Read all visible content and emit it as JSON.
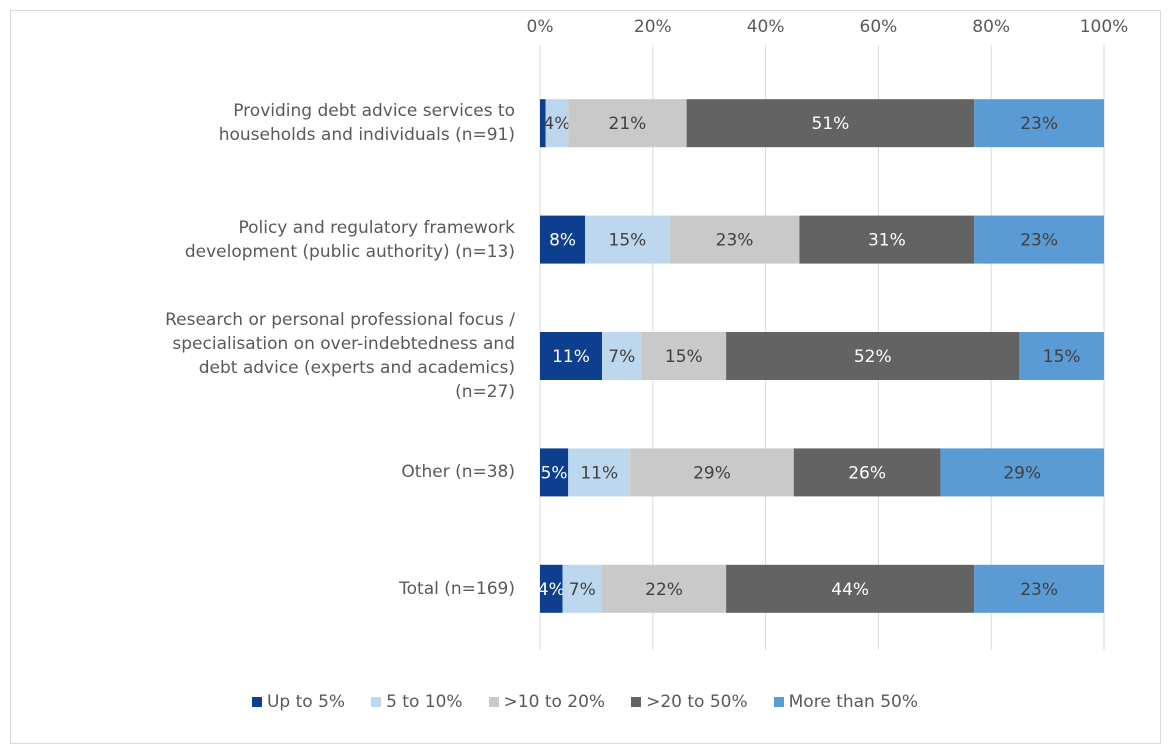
{
  "chart_data": {
    "type": "stacked-bar-horizontal",
    "categories": [
      "Providing debt advice services to\nhouseholds and individuals (n=91)",
      "Policy and regulatory framework\ndevelopment (public authority) (n=13)",
      "Research or personal professional focus /\nspecialisation on over-indebtedness and\ndebt advice (experts and academics)\n(n=27)",
      "Other (n=38)",
      "Total (n=169)"
    ],
    "series": [
      {
        "name": "Up to 5%",
        "color": "#0e3f8e",
        "values": [
          1,
          8,
          11,
          5,
          4
        ],
        "value_labels": [
          null,
          "8%",
          "11%",
          "5%",
          "4%"
        ]
      },
      {
        "name": "5 to 10%",
        "color": "#bdd7ee",
        "values": [
          4,
          15,
          7,
          11,
          7
        ],
        "value_labels": [
          "4%",
          "15%",
          "7%",
          "11%",
          "7%"
        ]
      },
      {
        "name": ">10 to 20%",
        "color": "#c9c9c9",
        "values": [
          21,
          23,
          15,
          29,
          22
        ],
        "value_labels": [
          "21%",
          "23%",
          "15%",
          "29%",
          "22%"
        ]
      },
      {
        "name": ">20 to 50%",
        "color": "#636363",
        "values": [
          51,
          31,
          52,
          26,
          44
        ],
        "value_labels": [
          "51%",
          "31%",
          "52%",
          "26%",
          "44%"
        ]
      },
      {
        "name": "More than 50%",
        "color": "#5b9bd5",
        "values": [
          23,
          23,
          15,
          29,
          23
        ],
        "value_labels": [
          "23%",
          "23%",
          "15%",
          "29%",
          "23%"
        ]
      }
    ],
    "xlim": [
      0,
      100
    ],
    "xticks": [
      {
        "value": 0,
        "label": "0%"
      },
      {
        "value": 20,
        "label": "20%"
      },
      {
        "value": 40,
        "label": "40%"
      },
      {
        "value": 60,
        "label": "60%"
      },
      {
        "value": 80,
        "label": "80%"
      },
      {
        "value": 100,
        "label": "100%"
      }
    ],
    "grid": true,
    "legend": "bottom"
  }
}
